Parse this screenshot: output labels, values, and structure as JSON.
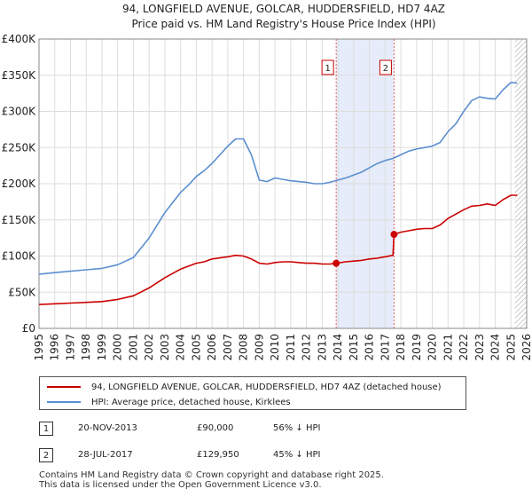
{
  "chart_data": {
    "type": "line",
    "title": "94, LONGFIELD AVENUE, GOLCAR, HUDDERSFIELD, HD7 4AZ",
    "subtitle": "Price paid vs. HM Land Registry's House Price Index (HPI)",
    "xlim": [
      1995,
      2026
    ],
    "ylim": [
      0,
      400000
    ],
    "x_ticks": [
      "1995",
      "1996",
      "1997",
      "1998",
      "1999",
      "2000",
      "2001",
      "2002",
      "2003",
      "2004",
      "2005",
      "2006",
      "2007",
      "2008",
      "2009",
      "2010",
      "2011",
      "2012",
      "2013",
      "2014",
      "2015",
      "2016",
      "2017",
      "2018",
      "2019",
      "2020",
      "2021",
      "2022",
      "2023",
      "2024",
      "2025",
      "2026"
    ],
    "y_ticks": [
      {
        "value": 0,
        "label": "£0"
      },
      {
        "value": 50000,
        "label": "£50K"
      },
      {
        "value": 100000,
        "label": "£100K"
      },
      {
        "value": 150000,
        "label": "£150K"
      },
      {
        "value": 200000,
        "label": "£200K"
      },
      {
        "value": 250000,
        "label": "£250K"
      },
      {
        "value": 300000,
        "label": "£300K"
      },
      {
        "value": 350000,
        "label": "£350K"
      },
      {
        "value": 400000,
        "label": "£400K"
      }
    ],
    "grid": true,
    "shaded_period": {
      "from": 2013.89,
      "to": 2017.57
    },
    "future_hatch_from": 2025.25,
    "series": [
      {
        "name": "94, LONGFIELD AVENUE, GOLCAR, HUDDERSFIELD, HD7 4AZ (detached house)",
        "color": "#cc0000",
        "x": [
          1995.0,
          1996.0,
          1997.0,
          1998.0,
          1999.0,
          2000.0,
          2001.0,
          2002.0,
          2003.0,
          2004.0,
          2004.5,
          2005.0,
          2005.5,
          2006.0,
          2007.0,
          2007.5,
          2008.0,
          2008.5,
          2009.0,
          2009.5,
          2010.0,
          2010.5,
          2011.0,
          2011.5,
          2012.0,
          2012.5,
          2013.0,
          2013.5,
          2013.89,
          2014.5,
          2015.0,
          2015.5,
          2016.0,
          2016.5,
          2017.0,
          2017.5,
          2017.57,
          2018.0,
          2018.5,
          2019.0,
          2019.5,
          2020.0,
          2020.5,
          2021.0,
          2021.5,
          2022.0,
          2022.5,
          2023.0,
          2023.5,
          2024.0,
          2024.5,
          2025.0,
          2025.4
        ],
        "values": [
          33000,
          34000,
          35000,
          36000,
          37000,
          40000,
          45000,
          56000,
          70000,
          82000,
          86000,
          90000,
          92000,
          96000,
          99000,
          101000,
          100000,
          96000,
          90000,
          89000,
          91000,
          92000,
          92000,
          91000,
          90000,
          90000,
          89000,
          89000,
          90000,
          92000,
          93000,
          94000,
          96000,
          97000,
          99000,
          101000,
          129950,
          133000,
          135000,
          137000,
          138000,
          138000,
          143000,
          152000,
          158000,
          164000,
          169000,
          170000,
          172000,
          170000,
          178000,
          184000,
          184000
        ]
      },
      {
        "name": "HPI: Average price, detached house, Kirklees",
        "color": "#5b8fd0",
        "x": [
          1995.0,
          1996.0,
          1997.0,
          1998.0,
          1999.0,
          2000.0,
          2001.0,
          2002.0,
          2003.0,
          2004.0,
          2004.5,
          2005.0,
          2005.5,
          2006.0,
          2006.5,
          2007.0,
          2007.5,
          2008.0,
          2008.5,
          2009.0,
          2009.5,
          2010.0,
          2010.5,
          2011.0,
          2011.5,
          2012.0,
          2012.5,
          2013.0,
          2013.5,
          2014.0,
          2014.5,
          2015.0,
          2015.5,
          2016.0,
          2016.5,
          2017.0,
          2017.5,
          2018.0,
          2018.5,
          2019.0,
          2019.5,
          2020.0,
          2020.5,
          2021.0,
          2021.5,
          2022.0,
          2022.5,
          2023.0,
          2023.5,
          2024.0,
          2024.5,
          2025.0,
          2025.4
        ],
        "values": [
          75000,
          77000,
          79000,
          81000,
          83000,
          88000,
          98000,
          125000,
          160000,
          188000,
          198000,
          210000,
          218000,
          228000,
          240000,
          252000,
          262000,
          262000,
          240000,
          205000,
          203000,
          208000,
          206000,
          204000,
          203000,
          202000,
          200000,
          200000,
          202000,
          205000,
          208000,
          212000,
          216000,
          222000,
          228000,
          232000,
          235000,
          240000,
          245000,
          248000,
          250000,
          252000,
          257000,
          272000,
          283000,
          300000,
          315000,
          320000,
          318000,
          317000,
          330000,
          340000,
          339000
        ]
      }
    ],
    "markers": [
      {
        "label": "1",
        "x": 2013.89,
        "y": 90000
      },
      {
        "label": "2",
        "x": 2017.57,
        "y": 129950
      }
    ]
  },
  "legend": {
    "property_label": "94, LONGFIELD AVENUE, GOLCAR, HUDDERSFIELD, HD7 4AZ (detached house)",
    "hpi_label": "HPI: Average price, detached house, Kirklees"
  },
  "transactions": [
    {
      "badge": "1",
      "date": "20-NOV-2013",
      "price": "£90,000",
      "hpi": "56% ↓ HPI"
    },
    {
      "badge": "2",
      "date": "28-JUL-2017",
      "price": "£129,950",
      "hpi": "45% ↓ HPI"
    }
  ],
  "footer": {
    "line1": "Contains HM Land Registry data © Crown copyright and database right 2025.",
    "line2": "This data is licensed under the Open Government Licence v3.0."
  }
}
